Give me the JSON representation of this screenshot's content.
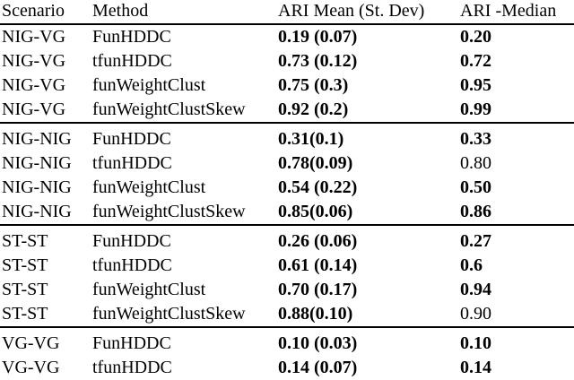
{
  "table": {
    "columns": [
      "Scenario",
      "Method",
      "ARI Mean (St. Dev)",
      "ARI -Median"
    ],
    "rows": [
      {
        "scenario": "NIG-VG",
        "method": "FunHDDC",
        "mean": "0.19 (0.07)",
        "mean_bold": true,
        "median": "0.20",
        "median_bold": true,
        "section_start": false
      },
      {
        "scenario": "NIG-VG",
        "method": "tfunHDDC",
        "mean": "0.73 (0.12)",
        "mean_bold": true,
        "median": "0.72",
        "median_bold": true,
        "section_start": false
      },
      {
        "scenario": "NIG-VG",
        "method": "funWeightClust",
        "mean": "0.75 (0.3)",
        "mean_bold": true,
        "median": "0.95",
        "median_bold": true,
        "section_start": false
      },
      {
        "scenario": "NIG-VG",
        "method": "funWeightClustSkew",
        "mean": "0.92 (0.2)",
        "mean_bold": true,
        "median": "0.99",
        "median_bold": true,
        "section_start": false
      },
      {
        "scenario": "NIG-NIG",
        "method": "FunHDDC",
        "mean": "0.31(0.1)",
        "mean_bold": true,
        "median": "0.33",
        "median_bold": true,
        "section_start": true
      },
      {
        "scenario": "NIG-NIG",
        "method": "tfunHDDC",
        "mean": "0.78(0.09)",
        "mean_bold": true,
        "median": "0.80",
        "median_bold": false,
        "section_start": false
      },
      {
        "scenario": "NIG-NIG",
        "method": "funWeightClust",
        "mean": "0.54 (0.22)",
        "mean_bold": true,
        "median": "0.50",
        "median_bold": true,
        "section_start": false
      },
      {
        "scenario": "NIG-NIG",
        "method": "funWeightClustSkew",
        "mean": "0.85(0.06)",
        "mean_bold": true,
        "median": "0.86",
        "median_bold": true,
        "section_start": false
      },
      {
        "scenario": "ST-ST",
        "method": "FunHDDC",
        "mean": "0.26 (0.06)",
        "mean_bold": true,
        "median": "0.27",
        "median_bold": true,
        "section_start": true
      },
      {
        "scenario": "ST-ST",
        "method": "tfunHDDC",
        "mean": "0.61 (0.14)",
        "mean_bold": true,
        "median": "0.6",
        "median_bold": true,
        "section_start": false
      },
      {
        "scenario": "ST-ST",
        "method": "funWeightClust",
        "mean": "0.70 (0.17)",
        "mean_bold": true,
        "median": "0.94",
        "median_bold": true,
        "section_start": false
      },
      {
        "scenario": "ST-ST",
        "method": "funWeightClustSkew",
        "mean": "0.88(0.10)",
        "mean_bold": true,
        "median": "0.90",
        "median_bold": false,
        "section_start": false
      },
      {
        "scenario": "VG-VG",
        "method": "FunHDDC",
        "mean": "0.10 (0.03)",
        "mean_bold": true,
        "median": "0.10",
        "median_bold": true,
        "section_start": true
      },
      {
        "scenario": "VG-VG",
        "method": "tfunHDDC",
        "mean": "0.14 (0.07)",
        "mean_bold": true,
        "median": "0.14",
        "median_bold": true,
        "section_start": false
      }
    ]
  }
}
